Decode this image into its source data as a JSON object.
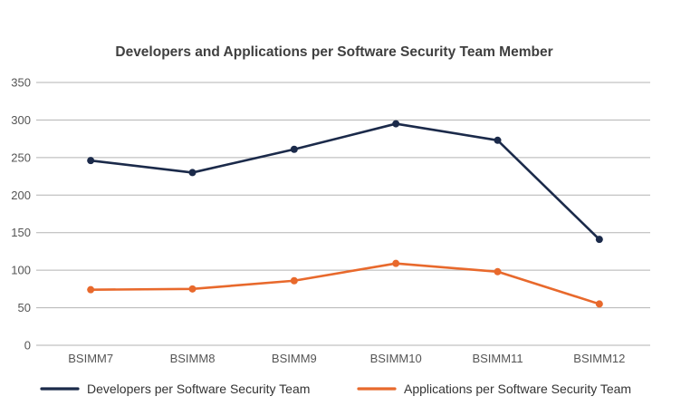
{
  "chart_data": {
    "type": "line",
    "title": "Developers and Applications per Software Security Team Member",
    "xlabel": "",
    "ylabel": "",
    "categories": [
      "BSIMM7",
      "BSIMM8",
      "BSIMM9",
      "BSIMM10",
      "BSIMM11",
      "BSIMM12"
    ],
    "ylim": [
      0,
      350
    ],
    "yticks": [
      0,
      50,
      100,
      150,
      200,
      250,
      300,
      350
    ],
    "grid": true,
    "legend_position": "bottom",
    "series": [
      {
        "name": "Developers per Software Security Team",
        "color": "#1b2a4a",
        "values": [
          246,
          230,
          261,
          295,
          273,
          141
        ]
      },
      {
        "name": "Applications per Software Security Team",
        "color": "#e8692c",
        "values": [
          74,
          75,
          86,
          109,
          98,
          55
        ]
      }
    ]
  }
}
